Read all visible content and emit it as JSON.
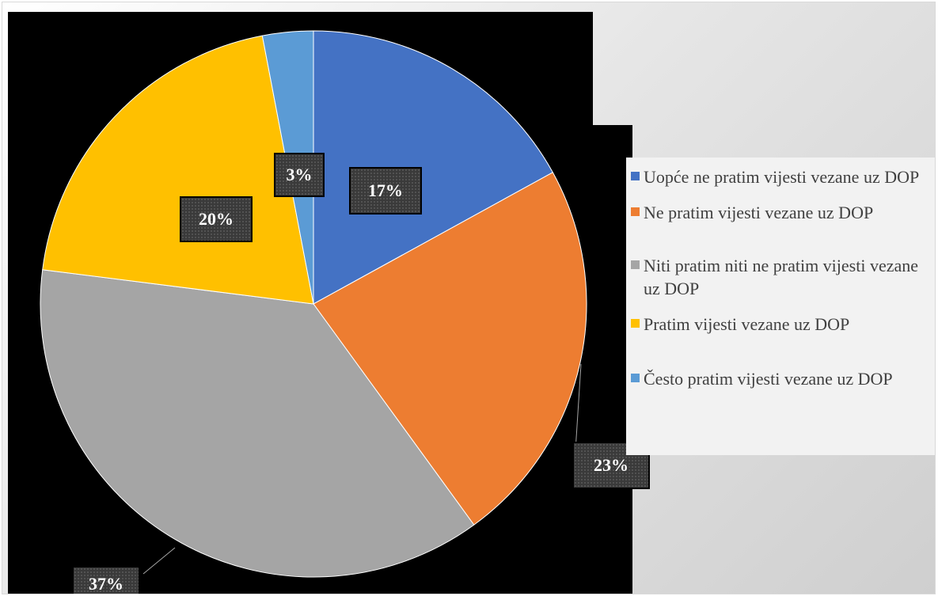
{
  "chart_data": {
    "type": "pie",
    "title": "",
    "categories": [
      "Uopće ne pratim vijesti vezane uz DOP",
      "Ne pratim vijesti vezane uz DOP",
      "Niti pratim niti ne pratim vijesti vezane uz DOP",
      "Pratim vijesti vezane uz DOP",
      "Često pratim vijesti vezane uz DOP"
    ],
    "values": [
      17,
      23,
      37,
      20,
      3
    ],
    "labels": [
      "17%",
      "23%",
      "37%",
      "20%",
      "3%"
    ],
    "colors": [
      "#4472C4",
      "#ED7D31",
      "#A5A5A5",
      "#FFC000",
      "#5B9BD5"
    ],
    "legend_position": "right"
  }
}
